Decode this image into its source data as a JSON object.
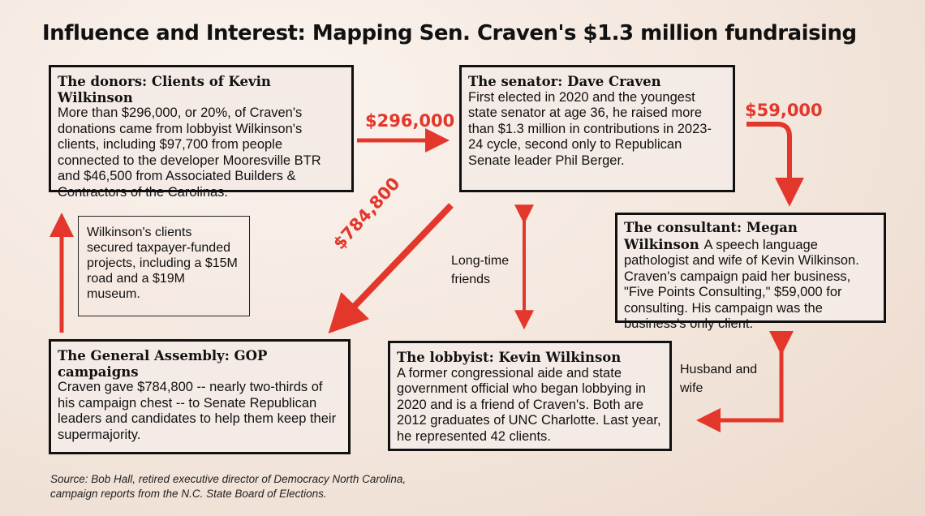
{
  "title": "Influence and Interest: Mapping Sen. Craven's $1.3 million fundraising",
  "boxes": {
    "donors": {
      "heading": "The donors: Clients of Kevin Wilkinson",
      "body": "More than $296,000, or 20%, of Craven's donations came from lobbyist Wilkinson's clients, including $97,700 from people connected to the developer Mooresville BTR and $46,500 from Associated Builders & Contractors of the Carolinas."
    },
    "senator": {
      "heading": "The senator: Dave Craven",
      "body": "First elected in 2020 and the youngest state senator at age 36, he raised more than $1.3 million in contributions in 2023-24 cycle, second only to Republican Senate leader Phil Berger."
    },
    "consultant": {
      "heading": "The consultant: Megan Wilkinson",
      "body": "A speech language pathologist and wife of Kevin Wilkinson. Craven's campaign paid her business, \"Five Points Consulting,\" $59,000 for consulting. His campaign was the business's only client."
    },
    "assembly": {
      "heading": "The General Assembly: GOP campaigns",
      "body": "Craven gave $784,800 -- nearly two-thirds of his campaign chest -- to Senate Republican leaders and candidates to help them keep their supermajority."
    },
    "lobbyist": {
      "heading": "The lobbyist: Kevin Wilkinson",
      "body": "A former congressional aide and state government official who began lobbying in 2020 and is a friend of Craven's. Both are 2012 graduates of UNC Charlotte. Last year, he represented 42 clients."
    }
  },
  "note": "Wilkinson's clients secured taxpayer-funded projects, including a $15M road and a $19M museum.",
  "relations": {
    "friends": "Long-time friends",
    "spouses": "Husband and wife"
  },
  "amounts": {
    "donors_to_senator": "$296,000",
    "senator_to_consultant": "$59,000",
    "senator_to_assembly": "$784,800"
  },
  "source": "Source: Bob Hall, retired executive director of Democracy North Carolina, campaign reports from the N.C. State Board of Elections.",
  "colors": {
    "arrow": "#e4372c",
    "border": "#111111",
    "box_fill": "#f4ebe6"
  }
}
